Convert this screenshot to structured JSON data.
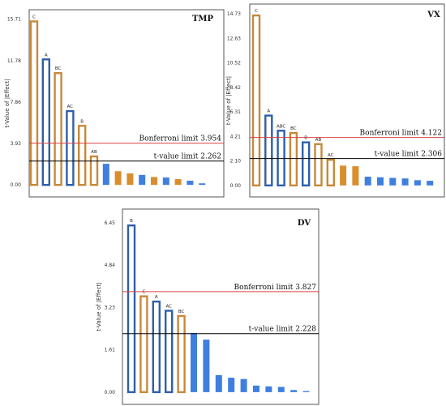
{
  "colors": {
    "outlined_orange": "#c8883a",
    "outlined_blue": "#2e5fa8",
    "filled_orange": "#d98e2e",
    "filled_blue": "#3f7fe0",
    "bonferroni_line": "#d94040",
    "tlimit_line": "#000000",
    "frame": "#555555"
  },
  "chart_data": [
    {
      "id": "tmp",
      "type": "bar",
      "title": "TMP",
      "ylabel": "t-Value of |Effect|",
      "xlabel": "",
      "yticks": [
        "0.00",
        "3.93",
        "7.86",
        "11.78",
        "15.71"
      ],
      "ylim": [
        -0.6,
        16.3
      ],
      "grid": false,
      "bars": [
        {
          "label": "C",
          "value": 15.5,
          "color": "orange",
          "style": "outlined"
        },
        {
          "label": "A",
          "value": 11.9,
          "color": "blue",
          "style": "outlined"
        },
        {
          "label": "BC",
          "value": 10.6,
          "color": "orange",
          "style": "outlined"
        },
        {
          "label": "AC",
          "value": 7.0,
          "color": "blue",
          "style": "outlined"
        },
        {
          "label": "B",
          "value": 5.6,
          "color": "orange",
          "style": "outlined"
        },
        {
          "label": "AB",
          "value": 2.7,
          "color": "orange",
          "style": "outlined"
        },
        {
          "label": "",
          "value": 2.0,
          "color": "blue",
          "style": "filled"
        },
        {
          "label": "",
          "value": 1.3,
          "color": "orange",
          "style": "filled"
        },
        {
          "label": "",
          "value": 1.1,
          "color": "orange",
          "style": "filled"
        },
        {
          "label": "",
          "value": 0.95,
          "color": "blue",
          "style": "filled"
        },
        {
          "label": "",
          "value": 0.75,
          "color": "orange",
          "style": "filled"
        },
        {
          "label": "",
          "value": 0.7,
          "color": "blue",
          "style": "filled"
        },
        {
          "label": "",
          "value": 0.55,
          "color": "orange",
          "style": "filled"
        },
        {
          "label": "",
          "value": 0.4,
          "color": "blue",
          "style": "filled"
        },
        {
          "label": "",
          "value": 0.15,
          "color": "blue",
          "style": "filled"
        }
      ],
      "bonferroni": {
        "label": "Bonferroni limit 3.954",
        "value": 3.954
      },
      "tlimit": {
        "label": "t-value limit 2.262",
        "value": 2.262
      }
    },
    {
      "id": "vx",
      "type": "bar",
      "title": "VX",
      "ylabel": "t-Value of |Effect|",
      "xlabel": "",
      "yticks": [
        "0.00",
        "2.10",
        "4.21",
        "6.31",
        "8.42",
        "10.52",
        "12.63",
        "14.73"
      ],
      "ylim": [
        -0.5,
        15.3
      ],
      "grid": false,
      "bars": [
        {
          "label": "C",
          "value": 14.6,
          "color": "orange",
          "style": "outlined"
        },
        {
          "label": "A",
          "value": 6.0,
          "color": "blue",
          "style": "outlined"
        },
        {
          "label": "ABC",
          "value": 4.7,
          "color": "blue",
          "style": "outlined"
        },
        {
          "label": "BC",
          "value": 4.5,
          "color": "orange",
          "style": "outlined"
        },
        {
          "label": "B",
          "value": 3.7,
          "color": "blue",
          "style": "outlined"
        },
        {
          "label": "AB",
          "value": 3.55,
          "color": "orange",
          "style": "outlined"
        },
        {
          "label": "AC",
          "value": 2.2,
          "color": "orange",
          "style": "outlined"
        },
        {
          "label": "",
          "value": 1.7,
          "color": "orange",
          "style": "filled"
        },
        {
          "label": "",
          "value": 1.65,
          "color": "orange",
          "style": "filled"
        },
        {
          "label": "",
          "value": 0.75,
          "color": "blue",
          "style": "filled"
        },
        {
          "label": "",
          "value": 0.7,
          "color": "blue",
          "style": "filled"
        },
        {
          "label": "",
          "value": 0.65,
          "color": "blue",
          "style": "filled"
        },
        {
          "label": "",
          "value": 0.6,
          "color": "blue",
          "style": "filled"
        },
        {
          "label": "",
          "value": 0.45,
          "color": "blue",
          "style": "filled"
        },
        {
          "label": "",
          "value": 0.4,
          "color": "blue",
          "style": "filled"
        }
      ],
      "bonferroni": {
        "label": "Bonferroni limit 4.122",
        "value": 4.122
      },
      "tlimit": {
        "label": "t-value limit 2.306",
        "value": 2.306
      }
    },
    {
      "id": "dv",
      "type": "bar",
      "title": "DV",
      "ylabel": "t-Value of |Effect|",
      "xlabel": "",
      "yticks": [
        "0.00",
        "1.61",
        "3.23",
        "4.84",
        "6.45"
      ],
      "ylim": [
        -0.25,
        6.85
      ],
      "grid": false,
      "bars": [
        {
          "label": "B",
          "value": 6.35,
          "color": "blue",
          "style": "outlined"
        },
        {
          "label": "C",
          "value": 3.65,
          "color": "orange",
          "style": "outlined"
        },
        {
          "label": "A",
          "value": 3.45,
          "color": "blue",
          "style": "outlined"
        },
        {
          "label": "AC",
          "value": 3.1,
          "color": "blue",
          "style": "outlined"
        },
        {
          "label": "BC",
          "value": 2.9,
          "color": "orange",
          "style": "outlined"
        },
        {
          "label": "",
          "value": 2.25,
          "color": "blue",
          "style": "filled"
        },
        {
          "label": "",
          "value": 2.0,
          "color": "blue",
          "style": "filled"
        },
        {
          "label": "",
          "value": 0.65,
          "color": "blue",
          "style": "filled"
        },
        {
          "label": "",
          "value": 0.55,
          "color": "blue",
          "style": "filled"
        },
        {
          "label": "",
          "value": 0.5,
          "color": "blue",
          "style": "filled"
        },
        {
          "label": "",
          "value": 0.25,
          "color": "blue",
          "style": "filled"
        },
        {
          "label": "",
          "value": 0.22,
          "color": "blue",
          "style": "filled"
        },
        {
          "label": "",
          "value": 0.2,
          "color": "blue",
          "style": "filled"
        },
        {
          "label": "",
          "value": 0.08,
          "color": "blue",
          "style": "filled"
        },
        {
          "label": "",
          "value": 0.04,
          "color": "blue",
          "style": "filled"
        }
      ],
      "bonferroni": {
        "label": "Bonferroni limit 3.827",
        "value": 3.827
      },
      "tlimit": {
        "label": "t-value limit 2.228",
        "value": 2.228
      }
    }
  ]
}
